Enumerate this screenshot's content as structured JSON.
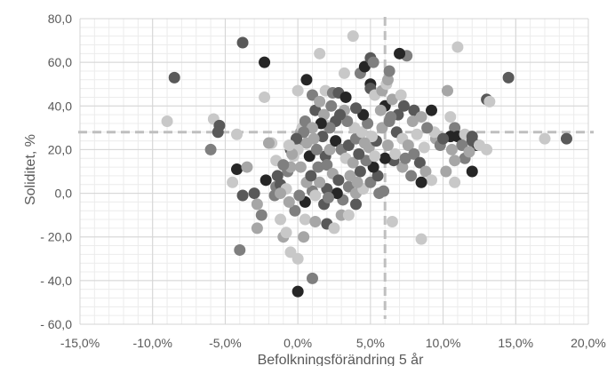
{
  "chart_data": {
    "type": "scatter",
    "title": "",
    "xlabel": "Befolkningsförändring 5 år",
    "ylabel": "Soliditet, %",
    "xlim": [
      -15,
      20
    ],
    "ylim": [
      -60,
      80
    ],
    "x_major_step": 5,
    "y_major_step": 20,
    "x_minor_step": 1,
    "y_minor_step": 4,
    "x_tick_labels": [
      "-15,0%",
      "-10,0%",
      "-5,0%",
      "0,0%",
      "5,0%",
      "10,0%",
      "15,0%",
      "20,0%"
    ],
    "y_tick_labels": [
      "80,0",
      "60,0",
      "40,0",
      "20,0",
      "0,0",
      "- 20,0",
      "- 40,0",
      "- 60,0"
    ],
    "grid": true,
    "reference_lines": {
      "x": 6.0,
      "y": 28.0,
      "style": "dashed",
      "color": "#bfbfbf"
    },
    "point_colors": [
      "#262626",
      "#595959",
      "#7f7f7f",
      "#a6a6a6",
      "#c8c8c8"
    ],
    "points": [
      [
        -3.8,
        69,
        1
      ],
      [
        -2.3,
        60,
        0
      ],
      [
        -8.5,
        53,
        1
      ],
      [
        -9,
        33,
        4
      ],
      [
        -5.8,
        34,
        4
      ],
      [
        -5.4,
        31,
        1
      ],
      [
        -5.5,
        28,
        1
      ],
      [
        -6,
        20,
        2
      ],
      [
        -4.2,
        27,
        4
      ],
      [
        -4.5,
        5,
        4
      ],
      [
        -3.8,
        -1,
        1
      ],
      [
        -4,
        -26,
        2
      ],
      [
        -4.2,
        11,
        0
      ],
      [
        -3.5,
        12,
        3
      ],
      [
        -3,
        0,
        1
      ],
      [
        -2.8,
        -5,
        3
      ],
      [
        -2.5,
        -10,
        2
      ],
      [
        -2.8,
        -16,
        3
      ],
      [
        -2.2,
        6,
        0
      ],
      [
        -1.8,
        23,
        4
      ],
      [
        -2,
        23,
        3
      ],
      [
        -1.5,
        15,
        4
      ],
      [
        -2.3,
        44,
        4
      ],
      [
        -1.5,
        3,
        2
      ],
      [
        -1.2,
        -12,
        4
      ],
      [
        -1,
        -20,
        3
      ],
      [
        -0.8,
        -18,
        4
      ],
      [
        -0.5,
        -27,
        4
      ],
      [
        -1.6,
        -1,
        2
      ],
      [
        -1.2,
        4,
        1
      ],
      [
        -0.7,
        10,
        2
      ],
      [
        -0.5,
        12,
        3
      ],
      [
        -0.3,
        17,
        4
      ],
      [
        -0.5,
        20,
        1
      ],
      [
        0,
        22,
        2
      ],
      [
        0.2,
        28,
        3
      ],
      [
        0.3,
        30,
        4
      ],
      [
        0.5,
        33,
        2
      ],
      [
        0,
        47,
        4
      ],
      [
        0.6,
        52,
        0
      ],
      [
        1,
        45,
        2
      ],
      [
        1.2,
        38,
        1
      ],
      [
        1.5,
        42,
        3
      ],
      [
        1.5,
        64,
        4
      ],
      [
        1.9,
        47,
        4
      ],
      [
        1.8,
        36,
        3
      ],
      [
        2,
        31,
        4
      ],
      [
        2.4,
        46,
        2
      ],
      [
        2.8,
        46,
        1
      ],
      [
        3.2,
        55,
        4
      ],
      [
        3.3,
        44,
        0
      ],
      [
        3.8,
        72,
        4
      ],
      [
        4.3,
        55,
        2
      ],
      [
        4.6,
        58,
        0
      ],
      [
        5,
        62,
        1
      ],
      [
        5.2,
        60,
        2
      ],
      [
        5,
        50,
        0
      ],
      [
        5,
        48,
        1
      ],
      [
        5.3,
        45,
        4
      ],
      [
        5.8,
        47,
        3
      ],
      [
        6.1,
        50,
        4
      ],
      [
        6.2,
        52,
        3
      ],
      [
        6.3,
        56,
        2
      ],
      [
        6,
        40,
        0
      ],
      [
        6.5,
        43,
        3
      ],
      [
        7.5,
        63,
        2
      ],
      [
        7,
        64,
        0
      ],
      [
        7.3,
        40,
        1
      ],
      [
        7.1,
        45,
        4
      ],
      [
        8,
        38,
        1
      ],
      [
        8.5,
        35,
        3
      ],
      [
        9.2,
        38,
        0
      ],
      [
        10.3,
        47,
        3
      ],
      [
        11,
        67,
        4
      ],
      [
        10.5,
        35,
        4
      ],
      [
        10.8,
        30,
        2
      ],
      [
        11,
        26,
        0
      ],
      [
        10.5,
        26,
        0
      ],
      [
        11.5,
        27,
        4
      ],
      [
        12,
        26,
        1
      ],
      [
        12.3,
        22,
        0
      ],
      [
        12,
        24,
        1
      ],
      [
        13,
        43,
        1
      ],
      [
        13.2,
        42,
        4
      ],
      [
        12.5,
        22,
        4
      ],
      [
        11.5,
        16,
        2
      ],
      [
        11.3,
        22,
        2
      ],
      [
        10.8,
        15,
        3
      ],
      [
        10.2,
        10,
        3
      ],
      [
        10.8,
        5,
        4
      ],
      [
        12,
        10,
        0
      ],
      [
        14.5,
        53,
        1
      ],
      [
        17,
        25,
        4
      ],
      [
        18.5,
        25,
        1
      ],
      [
        0,
        -45,
        0
      ],
      [
        0,
        -30,
        4
      ],
      [
        1,
        -39,
        2
      ],
      [
        0.4,
        -20,
        3
      ],
      [
        0.5,
        -12,
        4
      ],
      [
        1.2,
        -13,
        3
      ],
      [
        2,
        -14,
        1
      ],
      [
        2.5,
        -16,
        4
      ],
      [
        3,
        -10,
        3
      ],
      [
        3.5,
        -10,
        4
      ],
      [
        4,
        -5,
        1
      ],
      [
        3.1,
        -3,
        2
      ],
      [
        2.7,
        0,
        0
      ],
      [
        2,
        2,
        1
      ],
      [
        1.5,
        5,
        3
      ],
      [
        1.8,
        -5,
        1
      ],
      [
        1,
        1,
        2
      ],
      [
        0.5,
        -4,
        0
      ],
      [
        -0.2,
        -8,
        2
      ],
      [
        0.1,
        -1,
        2
      ],
      [
        0.6,
        5,
        3
      ],
      [
        0.9,
        8,
        1
      ],
      [
        1.4,
        12,
        2
      ],
      [
        1.9,
        17,
        1
      ],
      [
        2.2,
        20,
        3
      ],
      [
        2.6,
        24,
        0
      ],
      [
        3,
        20,
        2
      ],
      [
        3.3,
        16,
        4
      ],
      [
        3.8,
        14,
        3
      ],
      [
        3.5,
        22,
        1
      ],
      [
        4,
        25,
        2
      ],
      [
        4.4,
        28,
        4
      ],
      [
        4.8,
        32,
        2
      ],
      [
        4.5,
        36,
        0
      ],
      [
        4,
        39,
        1
      ],
      [
        3.2,
        38,
        3
      ],
      [
        2.6,
        33,
        1
      ],
      [
        2.2,
        30,
        2
      ],
      [
        1.7,
        26,
        1
      ],
      [
        1.1,
        25,
        3
      ],
      [
        0.6,
        23,
        3
      ],
      [
        0,
        20,
        4
      ],
      [
        -0.4,
        18,
        3
      ],
      [
        -1,
        13,
        2
      ],
      [
        -1.4,
        8,
        1
      ],
      [
        -0.8,
        2,
        4
      ],
      [
        -1.2,
        0,
        3
      ],
      [
        -0.6,
        -4,
        3
      ],
      [
        0.2,
        12,
        3
      ],
      [
        0.8,
        17,
        0
      ],
      [
        1.3,
        20,
        2
      ],
      [
        2,
        13,
        2
      ],
      [
        2.4,
        9,
        3
      ],
      [
        2.8,
        6,
        1
      ],
      [
        3.5,
        3,
        2
      ],
      [
        4,
        0,
        3
      ],
      [
        4.5,
        2,
        4
      ],
      [
        5,
        5,
        2
      ],
      [
        5.5,
        8,
        1
      ],
      [
        5.2,
        12,
        0
      ],
      [
        4.7,
        15,
        2
      ],
      [
        4.2,
        18,
        1
      ],
      [
        4.9,
        21,
        3
      ],
      [
        5.4,
        24,
        1
      ],
      [
        5.8,
        30,
        3
      ],
      [
        6.3,
        33,
        2
      ],
      [
        6.8,
        28,
        1
      ],
      [
        7.2,
        25,
        4
      ],
      [
        7.6,
        22,
        3
      ],
      [
        8,
        18,
        2
      ],
      [
        8.4,
        14,
        1
      ],
      [
        8.8,
        10,
        3
      ],
      [
        9.2,
        6,
        4
      ],
      [
        8.5,
        5,
        0
      ],
      [
        7.8,
        8,
        2
      ],
      [
        7.2,
        12,
        3
      ],
      [
        6.6,
        15,
        1
      ],
      [
        6,
        16,
        0
      ],
      [
        5.6,
        0,
        2
      ],
      [
        5.9,
        1,
        2
      ],
      [
        6.5,
        -13,
        4
      ],
      [
        8.5,
        -21,
        4
      ],
      [
        9.5,
        25,
        3
      ],
      [
        9.8,
        22,
        2
      ],
      [
        9.4,
        28,
        4
      ],
      [
        8.9,
        30,
        2
      ],
      [
        8.2,
        27,
        4
      ],
      [
        7.9,
        33,
        3
      ],
      [
        6.9,
        36,
        1
      ],
      [
        6.4,
        35,
        2
      ],
      [
        5.7,
        38,
        3
      ],
      [
        5.1,
        26,
        4
      ],
      [
        4.6,
        23,
        3
      ],
      [
        3.9,
        30,
        4
      ],
      [
        3.4,
        33,
        2
      ],
      [
        2.9,
        36,
        1
      ],
      [
        2.3,
        40,
        2
      ],
      [
        1.6,
        32,
        0
      ],
      [
        1,
        30,
        3
      ],
      [
        0.4,
        28,
        2
      ],
      [
        -0.1,
        25,
        1
      ],
      [
        -0.6,
        22,
        4
      ],
      [
        1.2,
        -1,
        4
      ],
      [
        2.1,
        -2,
        2
      ],
      [
        3.6,
        8,
        3
      ],
      [
        4.3,
        10,
        1
      ],
      [
        6.7,
        18,
        4
      ],
      [
        7.4,
        16,
        2
      ],
      [
        8.7,
        21,
        4
      ],
      [
        10,
        25,
        1
      ],
      [
        10.6,
        20,
        3
      ],
      [
        11.8,
        19,
        3
      ],
      [
        13,
        20,
        4
      ],
      [
        6.2,
        22,
        3
      ],
      [
        5.3,
        17,
        4
      ],
      [
        4.1,
        5,
        3
      ]
    ]
  }
}
